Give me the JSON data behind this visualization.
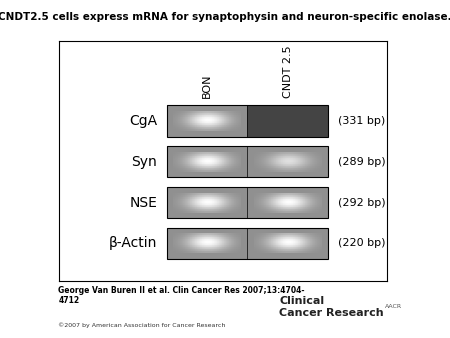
{
  "title": "CNDT2.5 cells express mRNA for synaptophysin and neuron-specific enolase.",
  "title_fontsize": 7.5,
  "footer_text": "George Van Buren II et al. Clin Cancer Res 2007;13:4704-\n4712",
  "footer_text2": "©2007 by American Association for Cancer Research",
  "journal_text": "Clinical\nCancer Research",
  "aacr_text": "AACR",
  "row_labels": [
    "CgA",
    "Syn",
    "NSE",
    "β-Actin"
  ],
  "col_labels": [
    "BON",
    "CNDT 2.5"
  ],
  "bp_labels": [
    "(331 bp)",
    "(289 bp)",
    "(292 bp)",
    "(220 bp)"
  ],
  "band_data": [
    {
      "row": 0,
      "col": 0,
      "present": true,
      "bright": true
    },
    {
      "row": 0,
      "col": 1,
      "present": false,
      "bright": false
    },
    {
      "row": 1,
      "col": 0,
      "present": true,
      "bright": true
    },
    {
      "row": 1,
      "col": 1,
      "present": true,
      "bright": false
    },
    {
      "row": 2,
      "col": 0,
      "present": true,
      "bright": true
    },
    {
      "row": 2,
      "col": 1,
      "present": true,
      "bright": true
    },
    {
      "row": 3,
      "col": 0,
      "present": true,
      "bright": true
    },
    {
      "row": 3,
      "col": 1,
      "present": true,
      "bright": true
    }
  ],
  "gel_bg_light": "#909090",
  "gel_bg_dark": "#444444",
  "fig_bg": "#ffffff",
  "panel_bg": "#ffffff"
}
